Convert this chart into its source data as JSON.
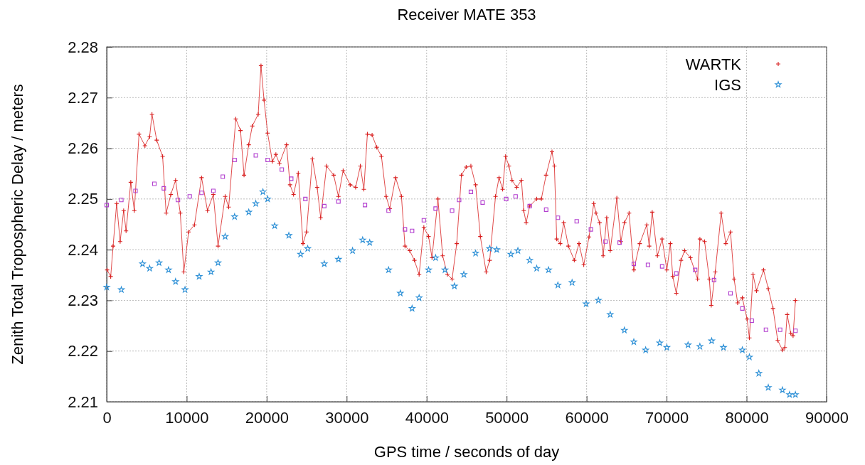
{
  "chart_data": {
    "type": "scatter",
    "title": "Receiver MATE 353",
    "xlabel": "GPS time / seconds of day",
    "ylabel": "Zenith Total Tropospheric Delay / meters",
    "xlim": [
      0,
      90000
    ],
    "xticks": [
      0,
      10000,
      20000,
      30000,
      40000,
      50000,
      60000,
      70000,
      80000,
      90000
    ],
    "ylim": [
      2.21,
      2.28
    ],
    "yticks": [
      2.21,
      2.22,
      2.23,
      2.24,
      2.25,
      2.26,
      2.27,
      2.28
    ],
    "grid": true,
    "legend": "top right",
    "series": [
      {
        "name": "WARTK",
        "type": "line",
        "marker": "cross",
        "color": "#d81e1e",
        "x": [
          60,
          500,
          800,
          1240,
          1680,
          2120,
          2420,
          3010,
          3450,
          4040,
          4780,
          5370,
          5660,
          6250,
          6990,
          7430,
          8020,
          8610,
          9200,
          9640,
          10240,
          10970,
          11860,
          12600,
          13330,
          13920,
          14810,
          15250,
          16140,
          16730,
          17170,
          17760,
          18200,
          18940,
          19290,
          19670,
          20120,
          20710,
          21150,
          21590,
          22480,
          22920,
          23360,
          23950,
          24540,
          24980,
          25720,
          26310,
          26750,
          27490,
          28380,
          28970,
          29560,
          30440,
          31120,
          31710,
          32150,
          32590,
          33180,
          33760,
          34350,
          34940,
          35380,
          36120,
          36850,
          37290,
          37880,
          38470,
          39060,
          39650,
          40240,
          40670,
          41410,
          42000,
          42590,
          43180,
          43760,
          44350,
          44940,
          45530,
          46120,
          46710,
          47440,
          47880,
          48610,
          49050,
          49500,
          49870,
          50290,
          50670,
          51260,
          51850,
          52140,
          52440,
          52880,
          53760,
          54340,
          54930,
          55670,
          55970,
          56260,
          56700,
          57140,
          57720,
          58460,
          59050,
          59640,
          60300,
          60890,
          61180,
          61620,
          62070,
          62510,
          62950,
          63780,
          64280,
          64720,
          65310,
          65900,
          66640,
          67520,
          67820,
          68200,
          68850,
          69440,
          70030,
          70470,
          70770,
          71210,
          71800,
          72240,
          72980,
          73870,
          74160,
          74750,
          75340,
          75580,
          76080,
          76820,
          77400,
          77990,
          78440,
          78880,
          79470,
          80060,
          80350,
          80800,
          81240,
          82120,
          82710,
          83300,
          83890,
          84490,
          84780,
          85070,
          85520,
          85810,
          86110
        ],
        "values": [
          2.236,
          2.2347,
          2.2407,
          2.2491,
          2.2416,
          2.2477,
          2.2437,
          2.2533,
          2.2477,
          2.2628,
          2.2605,
          2.2623,
          2.2667,
          2.2616,
          2.2584,
          2.2472,
          2.2509,
          2.2537,
          2.2472,
          2.2356,
          2.2435,
          2.2449,
          2.2542,
          2.2477,
          2.2509,
          2.2407,
          2.2505,
          2.2484,
          2.2658,
          2.2635,
          2.2547,
          2.2607,
          2.2644,
          2.2667,
          2.2763,
          2.2695,
          2.263,
          2.2574,
          2.2588,
          2.257,
          2.2607,
          2.2528,
          2.2509,
          2.2551,
          2.2412,
          2.2435,
          2.2579,
          2.2523,
          2.2463,
          2.2565,
          2.2547,
          2.2505,
          2.2556,
          2.2528,
          2.2523,
          2.2565,
          2.2519,
          2.2628,
          2.2626,
          2.2602,
          2.2584,
          2.2505,
          2.2481,
          2.2542,
          2.2505,
          2.2407,
          2.2398,
          2.2379,
          2.2351,
          2.2444,
          2.2426,
          2.2384,
          2.25,
          2.2388,
          2.2351,
          2.2342,
          2.2412,
          2.2547,
          2.2563,
          2.2565,
          2.2528,
          2.2426,
          2.2356,
          2.2379,
          2.2505,
          2.2542,
          2.2519,
          2.2584,
          2.2565,
          2.2537,
          2.2523,
          2.2537,
          2.2477,
          2.2453,
          2.2486,
          2.25,
          2.25,
          2.2547,
          2.2593,
          2.2565,
          2.2421,
          2.2412,
          2.2453,
          2.2407,
          2.2379,
          2.2412,
          2.237,
          2.2425,
          2.2491,
          2.2472,
          2.2453,
          2.2388,
          2.2463,
          2.2398,
          2.2502,
          2.2416,
          2.2453,
          2.2472,
          2.236,
          2.2412,
          2.2449,
          2.2407,
          2.2474,
          2.2388,
          2.2421,
          2.236,
          2.2412,
          2.2347,
          2.2314,
          2.2379,
          2.2398,
          2.2384,
          2.2342,
          2.2421,
          2.2416,
          2.2342,
          2.229,
          2.2356,
          2.2472,
          2.2412,
          2.2435,
          2.2342,
          2.2295,
          2.2305,
          2.2263,
          2.2226,
          2.2351,
          2.2319,
          2.236,
          2.2323,
          2.2284,
          2.2221,
          2.2202,
          2.2207,
          2.2272,
          2.2235,
          2.223,
          2.23
        ]
      },
      {
        "name": "IGS",
        "marker": "star",
        "color": "#2b8fd6",
        "x": [
          0,
          1830,
          4480,
          5370,
          6550,
          7730,
          8610,
          9790,
          11560,
          13040,
          13920,
          14810,
          15990,
          17760,
          18640,
          19530,
          20120,
          21000,
          22770,
          24240,
          25130,
          27200,
          28970,
          30740,
          32000,
          32880,
          35240,
          36710,
          38180,
          39060,
          40240,
          41120,
          42290,
          43470,
          44650,
          46120,
          47880,
          48760,
          50530,
          51410,
          52880,
          53760,
          55240,
          56410,
          58180,
          59940,
          61470,
          62950,
          64720,
          65900,
          67380,
          69140,
          70030,
          72680,
          74160,
          75630,
          77110,
          79470,
          80350,
          81530,
          82710,
          84480,
          85370,
          86100
        ],
        "values": [
          2.2326,
          2.2321,
          2.2372,
          2.2363,
          2.2374,
          2.236,
          2.2337,
          2.2321,
          2.2347,
          2.2356,
          2.2374,
          2.2426,
          2.2465,
          2.2474,
          2.2491,
          2.2514,
          2.25,
          2.2447,
          2.2428,
          2.2391,
          2.2402,
          2.2372,
          2.2381,
          2.2398,
          2.2419,
          2.2414,
          2.236,
          2.2314,
          2.2284,
          2.2305,
          2.236,
          2.2384,
          2.236,
          2.2328,
          2.2351,
          2.2393,
          2.2402,
          2.24,
          2.2391,
          2.2398,
          2.2379,
          2.2363,
          2.236,
          2.233,
          2.2335,
          2.2293,
          2.23,
          2.2272,
          2.2241,
          2.2218,
          2.2202,
          2.2216,
          2.2207,
          2.2212,
          2.2209,
          2.222,
          2.2207,
          2.2202,
          2.2188,
          2.2156,
          2.2128,
          2.2123,
          2.2114,
          2.2114
        ]
      },
      {
        "marker": "square",
        "color": "#b23fcf",
        "x": [
          0,
          1830,
          3600,
          5960,
          7140,
          8910,
          10380,
          11860,
          13330,
          14510,
          15990,
          18640,
          20120,
          21890,
          23070,
          24840,
          27200,
          28970,
          32290,
          35240,
          37290,
          38180,
          39650,
          41120,
          43180,
          44060,
          45530,
          47000,
          49940,
          51120,
          52880,
          54940,
          56410,
          58760,
          60530,
          62360,
          64130,
          65900,
          67670,
          69440,
          71210,
          73570,
          75930,
          77990,
          79470,
          80650,
          82420,
          84190,
          86110
        ],
        "values": [
          2.2488,
          2.2498,
          2.2516,
          2.253,
          2.2521,
          2.2498,
          2.2505,
          2.2512,
          2.2516,
          2.2544,
          2.2577,
          2.2586,
          2.2577,
          2.2558,
          2.254,
          2.25,
          2.2486,
          2.2495,
          2.2488,
          2.2477,
          2.244,
          2.2437,
          2.2458,
          2.2481,
          2.2477,
          2.2498,
          2.2514,
          2.2493,
          2.25,
          2.2505,
          2.2486,
          2.2479,
          2.2463,
          2.2456,
          2.244,
          2.2416,
          2.2414,
          2.2372,
          2.237,
          2.2367,
          2.2353,
          2.236,
          2.234,
          2.2314,
          2.2284,
          2.226,
          2.2242,
          2.2242,
          2.224
        ]
      }
    ]
  }
}
